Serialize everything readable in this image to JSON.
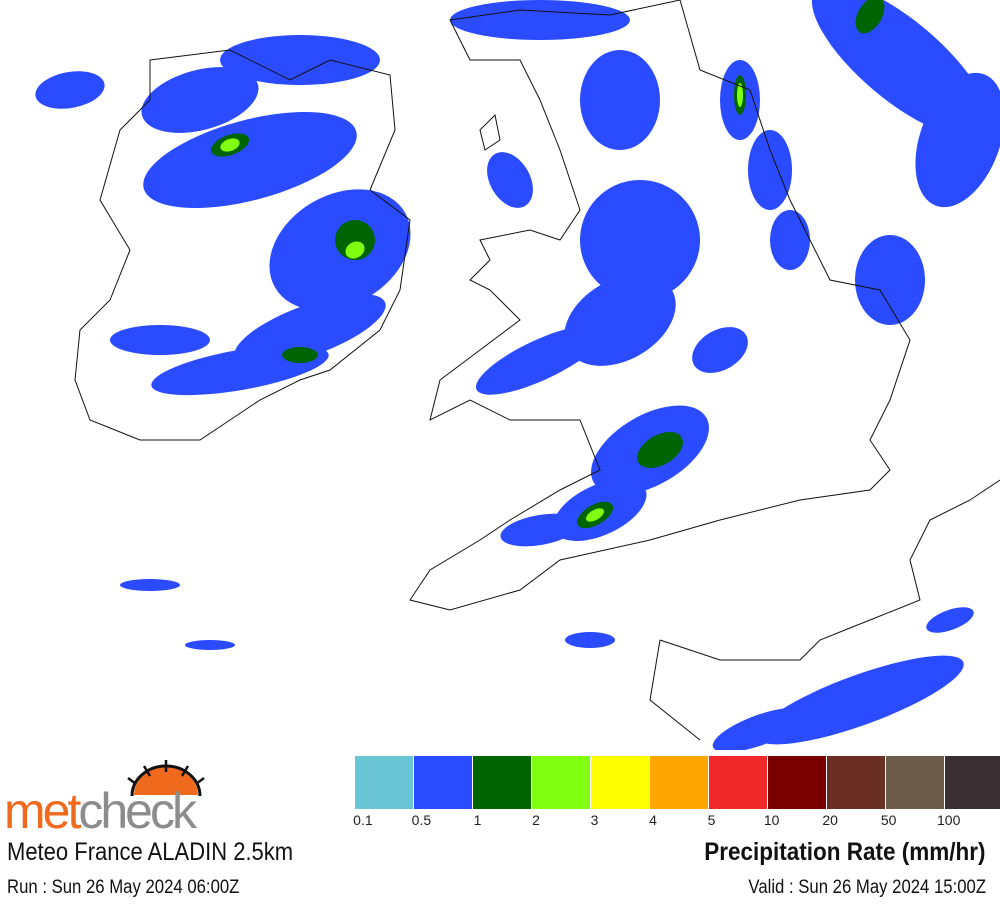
{
  "map": {
    "region": "Ireland, Great Britain, Northern France",
    "precip_colors": {
      "light": "#2a4bff",
      "moderate": "#006400",
      "heavy": "#80ff10",
      "very_heavy": "#ffff00"
    }
  },
  "legend": {
    "items": [
      {
        "label": "0.1",
        "color": "#6ac6d4"
      },
      {
        "label": "0.5",
        "color": "#2a4bff"
      },
      {
        "label": "1",
        "color": "#006400"
      },
      {
        "label": "2",
        "color": "#80ff10"
      },
      {
        "label": "3",
        "color": "#ffff00"
      },
      {
        "label": "4",
        "color": "#ffa500"
      },
      {
        "label": "5",
        "color": "#f0282a"
      },
      {
        "label": "10",
        "color": "#7a0000"
      },
      {
        "label": "20",
        "color": "#6a2e22"
      },
      {
        "label": "50",
        "color": "#6e5c4a"
      },
      {
        "label": "100",
        "color": "#3a3034"
      }
    ]
  },
  "logo": {
    "text_orange": "met",
    "text_grey": "check",
    "orange": "#f06a1e",
    "grey": "#8c8c8c"
  },
  "footer": {
    "model": "Meteo France ALADIN 2.5km",
    "title": "Precipitation Rate (mm/hr)",
    "run": "Run : Sun 26 May 2024 06:00Z",
    "valid": "Valid : Sun 26 May 2024 15:00Z"
  }
}
